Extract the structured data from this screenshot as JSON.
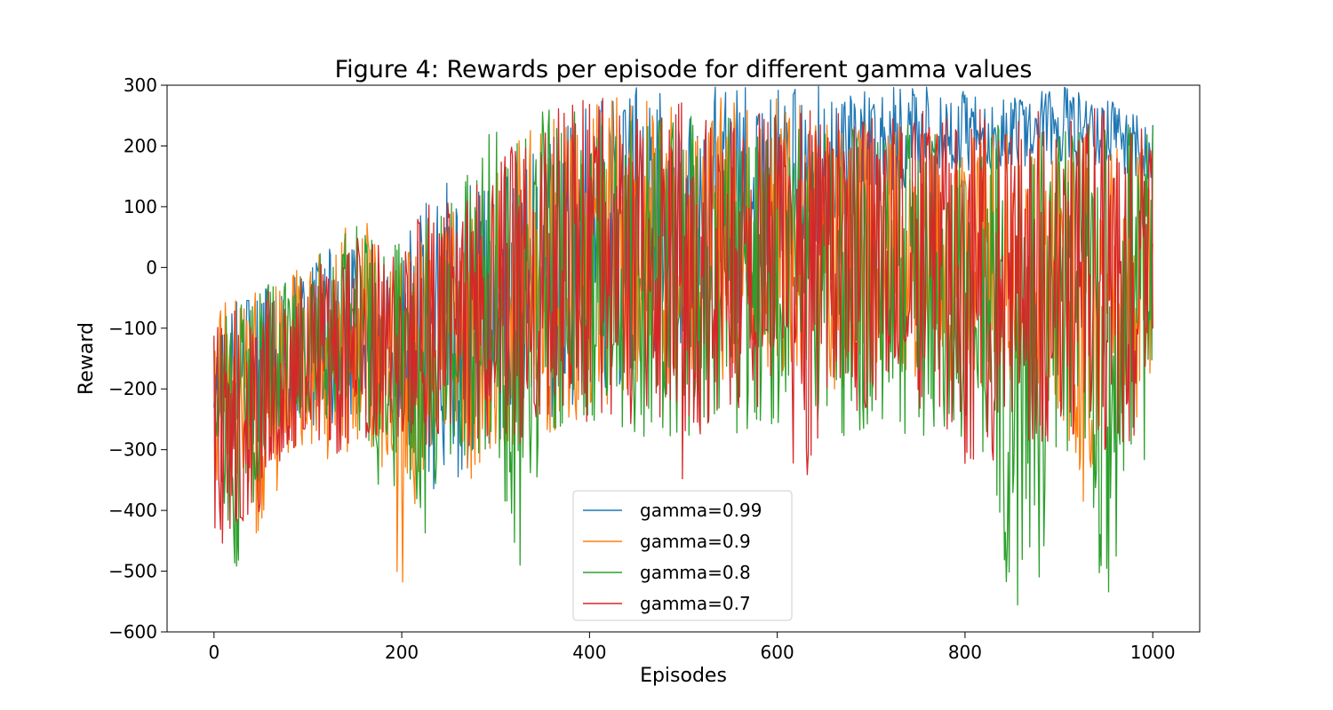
{
  "chart_data": {
    "type": "line",
    "title": "Figure 4: Rewards per episode for different gamma values",
    "xlabel": "Episodes",
    "ylabel": "Reward",
    "xlim": [
      -50,
      1050
    ],
    "ylim": [
      -600,
      300
    ],
    "xticks": [
      0,
      200,
      400,
      600,
      800,
      1000
    ],
    "yticks": [
      -600,
      -500,
      -400,
      -300,
      -200,
      -100,
      0,
      100,
      200,
      300
    ],
    "xtick_labels": [
      "0",
      "200",
      "400",
      "600",
      "800",
      "1000"
    ],
    "ytick_labels": [
      "−600",
      "−500",
      "−400",
      "−300",
      "−200",
      "−100",
      "0",
      "100",
      "200",
      "300"
    ],
    "grid": false,
    "legend_position": "lower-center",
    "series": [
      {
        "name": "gamma=0.99",
        "color": "#1f77b4",
        "x": [
          0,
          25,
          50,
          75,
          100,
          125,
          150,
          175,
          200,
          225,
          250,
          275,
          300,
          325,
          350,
          375,
          400,
          425,
          450,
          475,
          500,
          525,
          550,
          575,
          600,
          625,
          650,
          675,
          700,
          725,
          750,
          775,
          800,
          825,
          850,
          875,
          900,
          925,
          950,
          975,
          1000
        ],
        "upper": [
          -80,
          -40,
          -30,
          -20,
          -10,
          40,
          30,
          20,
          60,
          110,
          150,
          140,
          130,
          180,
          220,
          260,
          290,
          300,
          300,
          300,
          290,
          300,
          300,
          300,
          300,
          300,
          300,
          300,
          300,
          300,
          300,
          300,
          290,
          280,
          280,
          290,
          300,
          290,
          280,
          260,
          250
        ],
        "lower": [
          -420,
          -300,
          -300,
          -280,
          -260,
          -260,
          -250,
          -250,
          -270,
          -380,
          -360,
          -350,
          -340,
          -280,
          -250,
          -240,
          -220,
          -200,
          -180,
          -160,
          -140,
          -120,
          -100,
          -80,
          -40,
          0,
          40,
          80,
          100,
          120,
          140,
          160,
          160,
          160,
          160,
          160,
          160,
          160,
          160,
          150,
          140
        ]
      },
      {
        "name": "gamma=0.9",
        "color": "#ff7f0e",
        "x": [
          0,
          25,
          50,
          75,
          100,
          125,
          150,
          175,
          200,
          225,
          250,
          275,
          300,
          325,
          350,
          375,
          400,
          425,
          450,
          475,
          500,
          525,
          550,
          575,
          600,
          625,
          650,
          675,
          700,
          725,
          750,
          775,
          800,
          825,
          850,
          875,
          900,
          925,
          950,
          975,
          1000
        ],
        "upper": [
          -20,
          -40,
          -30,
          -20,
          40,
          20,
          100,
          60,
          20,
          60,
          100,
          130,
          180,
          220,
          240,
          260,
          270,
          280,
          280,
          280,
          280,
          290,
          290,
          280,
          280,
          270,
          260,
          250,
          240,
          240,
          230,
          230,
          230,
          220,
          220,
          220,
          220,
          220,
          200,
          200,
          200
        ],
        "lower": [
          -450,
          -350,
          -470,
          -350,
          -300,
          -330,
          -300,
          -320,
          -600,
          -330,
          -340,
          -360,
          -330,
          -300,
          -280,
          -260,
          -240,
          -220,
          -200,
          -200,
          -200,
          -200,
          -200,
          -200,
          -200,
          -200,
          -200,
          -200,
          -200,
          -200,
          -200,
          -200,
          -210,
          -220,
          -220,
          -230,
          -240,
          -400,
          -250,
          -250,
          -250
        ]
      },
      {
        "name": "gamma=0.8",
        "color": "#2ca02c",
        "x": [
          0,
          25,
          50,
          75,
          100,
          125,
          150,
          175,
          200,
          225,
          250,
          275,
          300,
          325,
          350,
          375,
          400,
          425,
          450,
          475,
          500,
          525,
          550,
          575,
          600,
          625,
          650,
          675,
          700,
          725,
          750,
          775,
          800,
          825,
          850,
          875,
          900,
          925,
          950,
          975,
          1000
        ],
        "upper": [
          -90,
          -60,
          -30,
          -20,
          0,
          50,
          80,
          40,
          40,
          80,
          120,
          200,
          240,
          220,
          280,
          270,
          260,
          250,
          250,
          250,
          250,
          250,
          250,
          250,
          250,
          240,
          240,
          240,
          240,
          240,
          240,
          240,
          240,
          240,
          240,
          240,
          240,
          240,
          240,
          240,
          290
        ],
        "lower": [
          -300,
          -520,
          -350,
          -250,
          -250,
          -250,
          -250,
          -360,
          -380,
          -440,
          -330,
          -320,
          -300,
          -560,
          -300,
          -280,
          -260,
          -260,
          -280,
          -280,
          -280,
          -300,
          -280,
          -260,
          -260,
          -260,
          -260,
          -280,
          -280,
          -280,
          -280,
          -280,
          -300,
          -330,
          -600,
          -550,
          -300,
          -330,
          -600,
          -360,
          -300
        ]
      },
      {
        "name": "gamma=0.7",
        "color": "#d62728",
        "x": [
          0,
          25,
          50,
          75,
          100,
          125,
          150,
          175,
          200,
          225,
          250,
          275,
          300,
          325,
          350,
          375,
          400,
          425,
          450,
          475,
          500,
          525,
          550,
          575,
          600,
          625,
          650,
          675,
          700,
          725,
          750,
          775,
          800,
          825,
          850,
          875,
          900,
          925,
          950,
          975,
          1000
        ],
        "upper": [
          -100,
          -50,
          -30,
          -20,
          0,
          10,
          60,
          50,
          30,
          120,
          110,
          150,
          170,
          230,
          250,
          270,
          280,
          280,
          280,
          270,
          280,
          280,
          270,
          270,
          270,
          260,
          260,
          260,
          260,
          260,
          260,
          260,
          260,
          260,
          260,
          260,
          270,
          270,
          260,
          250,
          240
        ],
        "lower": [
          -490,
          -430,
          -400,
          -320,
          -300,
          -310,
          -300,
          -280,
          -280,
          -300,
          -300,
          -300,
          -300,
          -300,
          -280,
          -270,
          -260,
          -260,
          -260,
          -260,
          -360,
          -260,
          -240,
          -240,
          -230,
          -400,
          -240,
          -240,
          -240,
          -240,
          -240,
          -240,
          -350,
          -340,
          -300,
          -300,
          -300,
          -300,
          -300,
          -300,
          -250
        ]
      }
    ]
  }
}
